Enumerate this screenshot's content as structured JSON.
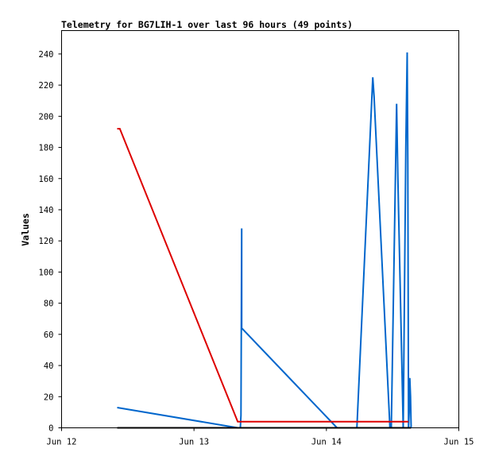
{
  "chart_data": {
    "type": "line",
    "title": "Telemetry for BG7LIH-1 over last 96 hours (49 points)",
    "xlabel": "",
    "ylabel": "Values",
    "xlim": [
      "Jun 12",
      "Jun 15"
    ],
    "ylim": [
      0,
      255
    ],
    "x_ticks": [
      {
        "label": "Jun 12",
        "value": 0
      },
      {
        "label": "Jun 13",
        "value": 1
      },
      {
        "label": "Jun 14",
        "value": 2
      },
      {
        "label": "Jun 15",
        "value": 3
      }
    ],
    "y_ticks": [
      0,
      20,
      40,
      60,
      80,
      100,
      120,
      140,
      160,
      180,
      200,
      220,
      240
    ],
    "grid": false,
    "legend": "none",
    "x_unit": "days after Jun 12 00:00",
    "series": [
      {
        "color": "#0066cc",
        "x": [
          0.42,
          1.33,
          1.35,
          1.355,
          1.36,
          1.36,
          2.08,
          2.1,
          2.23,
          2.35,
          2.36,
          2.48,
          2.49,
          2.53,
          2.54,
          2.58,
          2.6,
          2.61,
          2.615,
          2.62,
          2.625,
          2.63,
          2.635,
          2.64
        ],
        "values": [
          13,
          0,
          0,
          8,
          128,
          64,
          0,
          0,
          0,
          225,
          213,
          0,
          0,
          208,
          160,
          0,
          180,
          241,
          170,
          0,
          10,
          32,
          20,
          0
        ]
      },
      {
        "color": "#dd0000",
        "x": [
          0.42,
          0.44,
          1.33,
          1.35,
          2.62
        ],
        "values": [
          192,
          192,
          4,
          4,
          4
        ]
      },
      {
        "color": "#000000",
        "x": [
          0.42,
          2.64
        ],
        "values": [
          0,
          0
        ]
      }
    ]
  }
}
